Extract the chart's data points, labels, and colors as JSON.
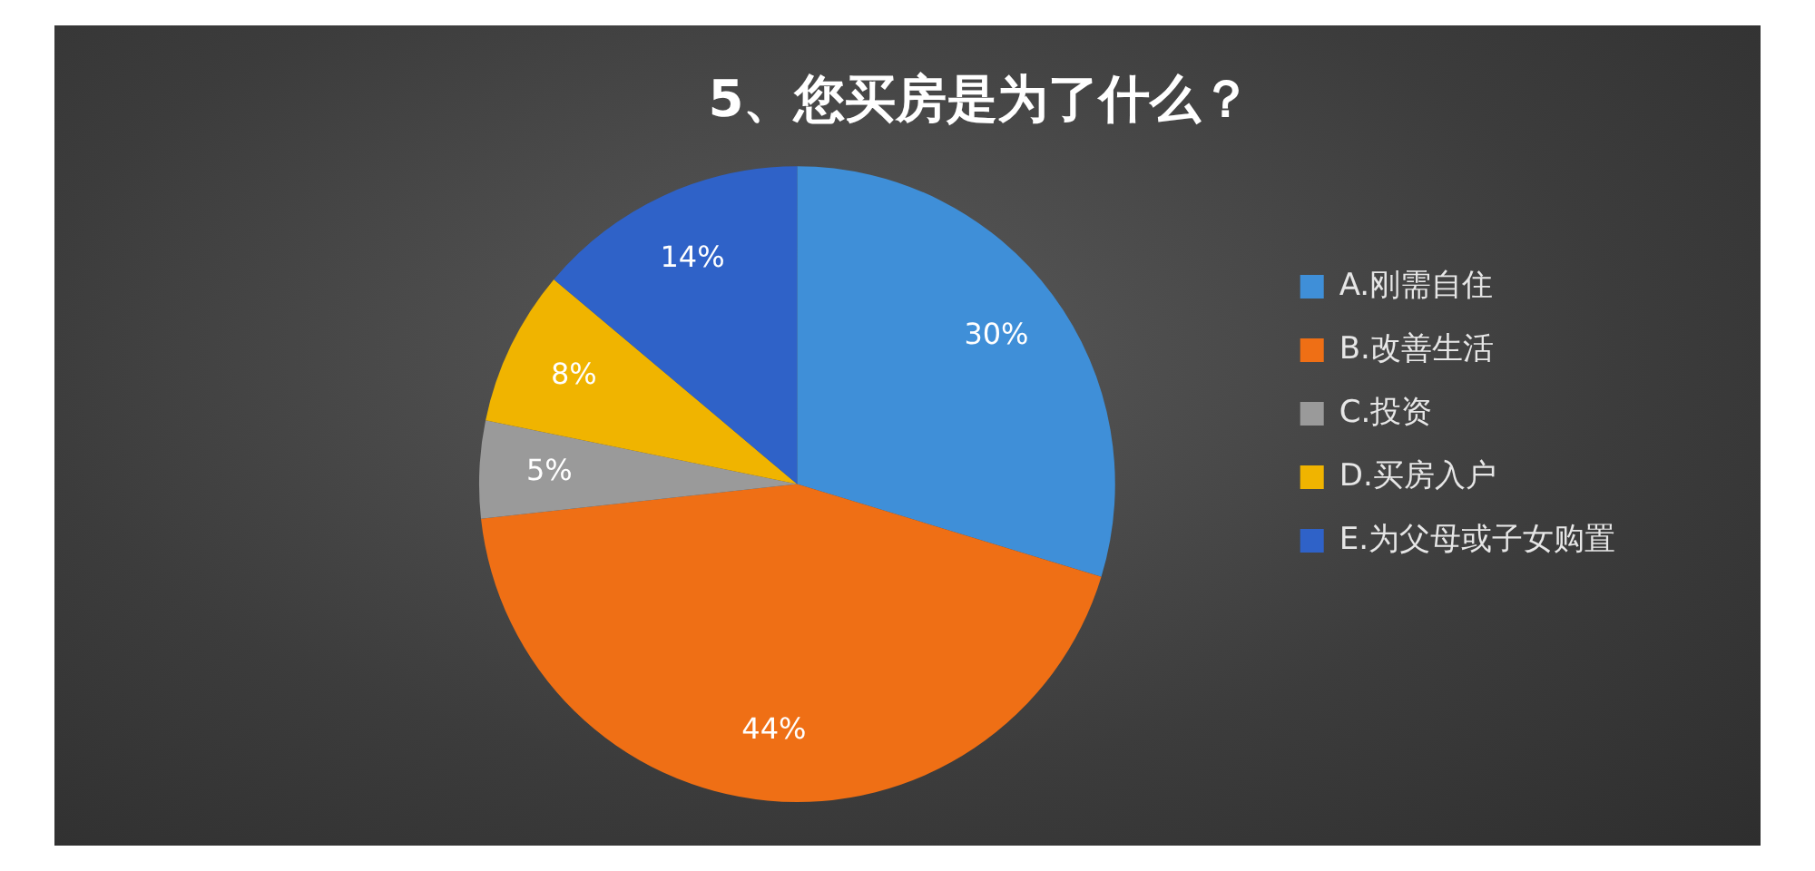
{
  "chart_data": {
    "type": "pie",
    "title": "5、您买房是为了什么？",
    "categories": [
      "A.刚需自住",
      "B.改善生活",
      "C.投资",
      "D.买房入户",
      "E.为父母或子女购置"
    ],
    "values": [
      30,
      44,
      5,
      8,
      14
    ],
    "colors": [
      "#3f8fd8",
      "#ef6f15",
      "#9a9a9a",
      "#f0b400",
      "#2f62c8"
    ],
    "value_labels": [
      "30%",
      "44%",
      "5%",
      "8%",
      "14%"
    ],
    "legend": "right"
  }
}
